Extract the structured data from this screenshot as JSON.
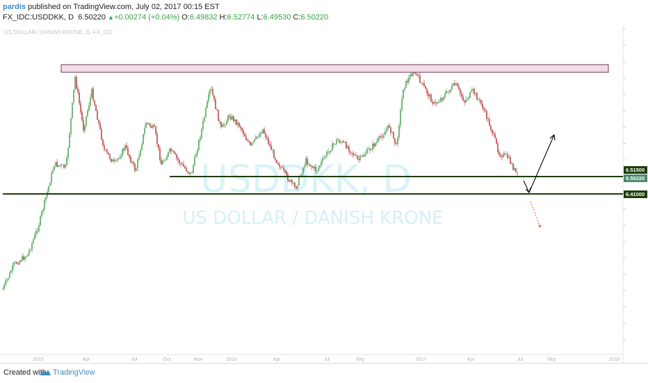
{
  "header": {
    "author": "pardis",
    "published_text": "published on TradingView.com, July 02, 2017 00:15 EST",
    "symbol": "FX_IDC:USDDKK, D",
    "last": "6.50220",
    "change": "+0.00274 (+0.04%)",
    "o_label": "O:",
    "o_value": "6.49832",
    "h_label": "H:",
    "h_value": "6.52774",
    "l_label": "L:",
    "l_value": "6.49530",
    "c_label": "C:",
    "c_value": "6.50220"
  },
  "chart": {
    "legend_text": "US DOLLAR / DANISH KRONE, D, FX_IDC",
    "watermark_symbol": "USDDKK, D",
    "watermark_name": "US DOLLAR / DANISH KRONE",
    "colors": {
      "up": "#3a9a45",
      "down": "#b02a2a",
      "resistance_fill": "#f3dbe8",
      "resistance_stroke": "#6b3a4c",
      "support": "#1d3d0a",
      "tag": "#1d3d0a",
      "last_price_tag": "#4d8a6d"
    },
    "price_tags": [
      "6.51500",
      "6.50220",
      "6.41000"
    ],
    "x_ticks": [
      "2015",
      "Apr",
      "Jul",
      "Oct",
      "Nov",
      "2016",
      "Apr",
      "Jul",
      "Sep",
      "2017",
      "Apr",
      "Jul",
      "Sep",
      "2018"
    ]
  },
  "footer": {
    "created_with": "Created with",
    "brand": "TradingView"
  }
}
